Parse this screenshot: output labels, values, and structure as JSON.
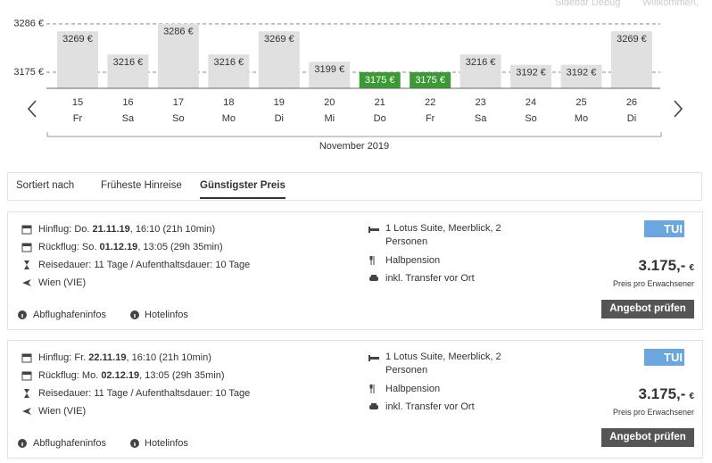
{
  "header": {
    "links": [
      "Sidebar Debug",
      "Willkommen,"
    ]
  },
  "price_chart": {
    "ylim": [
      3138,
      3300
    ],
    "yticks": [
      {
        "value": 3175,
        "label": "3175 €"
      },
      {
        "value": 3286,
        "label": "3286 €"
      }
    ],
    "days": [
      15,
      16,
      17,
      18,
      19,
      20,
      21,
      22,
      23,
      24,
      25,
      26
    ],
    "weekdays": [
      "Fr",
      "Sa",
      "So",
      "Mo",
      "Di",
      "Mi",
      "Do",
      "Fr",
      "Sa",
      "So",
      "Mo",
      "Di"
    ],
    "prices": [
      3269,
      3216,
      3286,
      3216,
      3269,
      3199,
      3175,
      3175,
      3216,
      3192,
      3192,
      3269
    ],
    "price_labels": [
      "3269 €",
      "3216 €",
      "3286 €",
      "3216 €",
      "3269 €",
      "3199 €",
      "3175 €",
      "3175 €",
      "3216 €",
      "3192 €",
      "3192 €",
      "3269 €"
    ],
    "month": "November 2019",
    "bar_color": "#e0e0e0",
    "best_color": "#3c9a34"
  },
  "tabs": {
    "label": "Sortiert nach",
    "options": [
      "Früheste Hinreise",
      "Günstigster Preis"
    ],
    "active": 1
  },
  "offers": [
    {
      "outbound": {
        "label": "Hinflug: Do.",
        "date": "21.11.19",
        "time": ", 16:10 (21h 10min)"
      },
      "return": {
        "label": "Rückflug: So.",
        "date": "01.12.19",
        "time": ", 13:05 (29h 35min)"
      },
      "duration": "Reisedauer: 11 Tage / Aufenthaltsdauer: 10 Tage",
      "airport": "Wien (VIE)",
      "room": "1 Lotus Suite, Meerblick, 2 Personen",
      "board": "Halbpension",
      "transfer": "inkl. Transfer vor Ort",
      "operator": "TUI",
      "price": "3.175,-",
      "currency": "€",
      "price_note": "Preis pro Erwachsener",
      "button": "Angebot prüfen",
      "links": [
        "Abflughafeninfos",
        "Hotelinfos"
      ]
    },
    {
      "outbound": {
        "label": "Hinflug: Fr.",
        "date": "22.11.19",
        "time": ", 16:10 (21h 10min)"
      },
      "return": {
        "label": "Rückflug: Mo.",
        "date": "02.12.19",
        "time": ", 13:05 (29h 35min)"
      },
      "duration": "Reisedauer: 11 Tage / Aufenthaltsdauer: 10 Tage",
      "airport": "Wien (VIE)",
      "room": "1 Lotus Suite, Meerblick, 2 Personen",
      "board": "Halbpension",
      "transfer": "inkl. Transfer vor Ort",
      "operator": "TUI",
      "price": "3.175,-",
      "currency": "€",
      "price_note": "Preis pro Erwachsener",
      "button": "Angebot prüfen",
      "links": [
        "Abflughafeninfos",
        "Hotelinfos"
      ]
    }
  ]
}
